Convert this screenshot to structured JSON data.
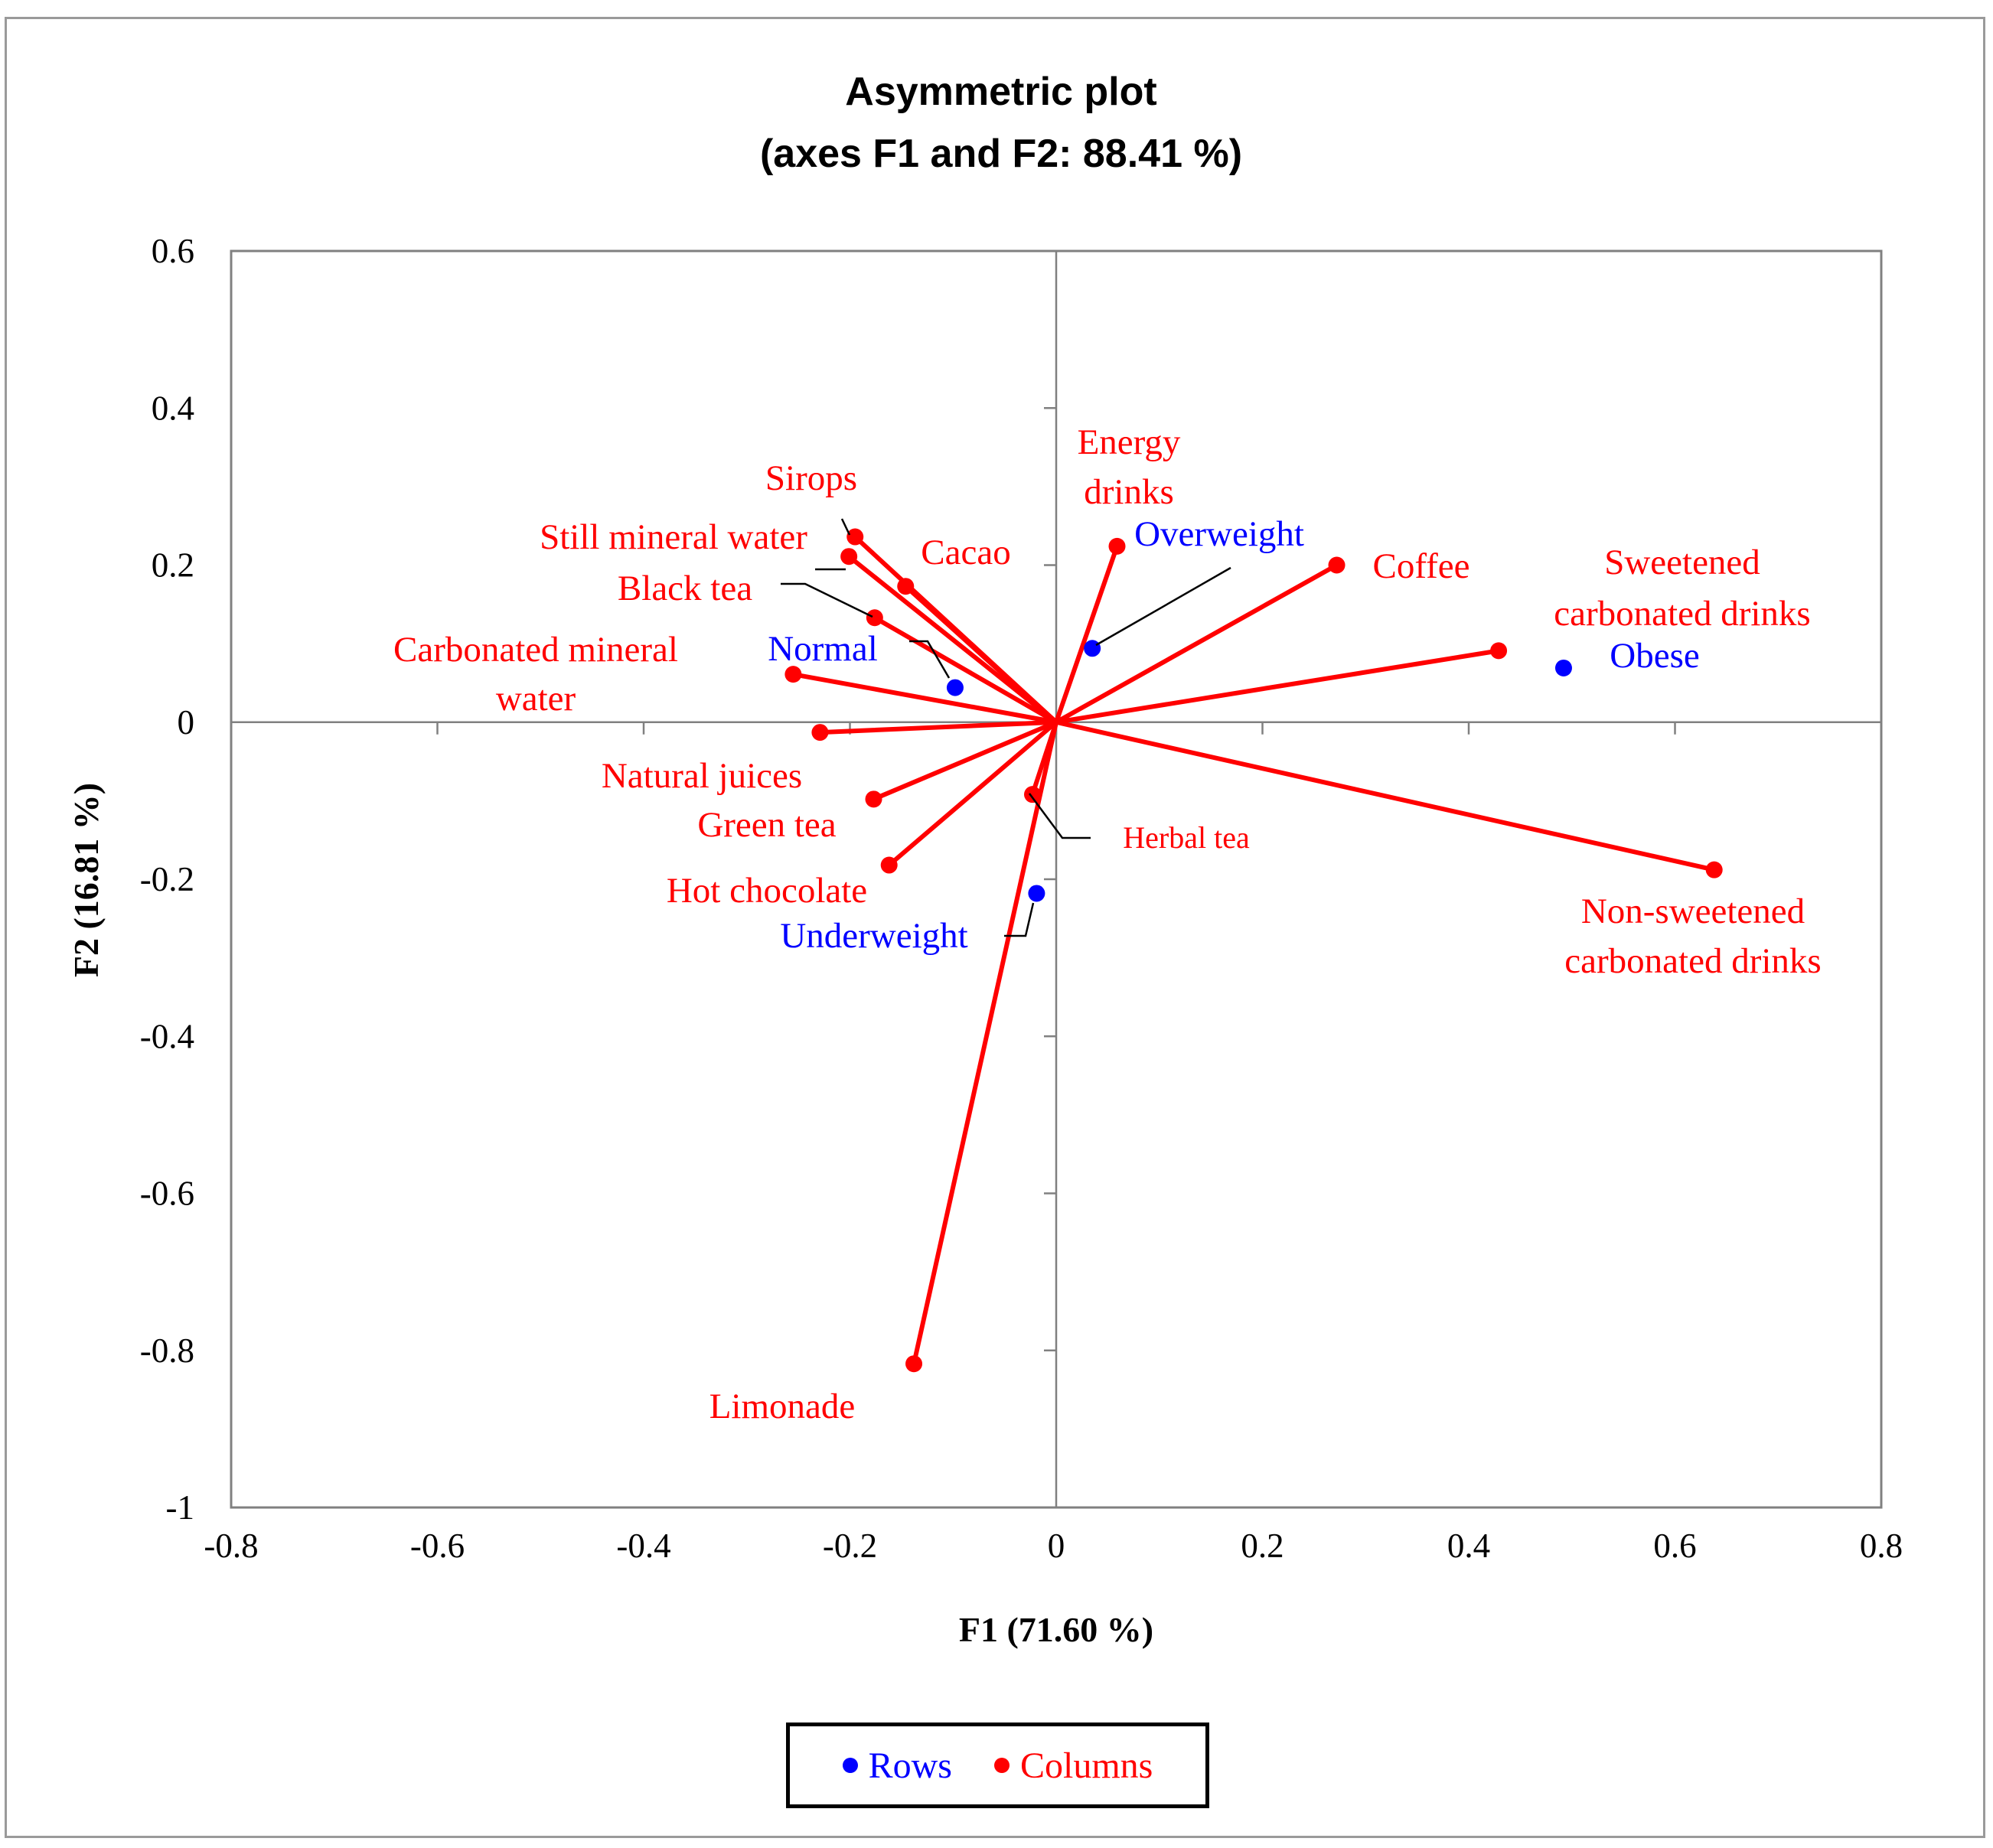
{
  "chart_data": {
    "type": "scatter",
    "subtype": "correspondence-analysis-asymmetric-biplot",
    "title": "Asymmetric plot",
    "subtitle": "(axes F1 and F2: 88.41 %)",
    "xlabel": "F1 (71.60 %)",
    "ylabel": "F2 (16.81 %)",
    "xlim": [
      -0.8,
      0.8
    ],
    "ylim": [
      -1,
      0.6
    ],
    "x_ticks": [
      "-0.8",
      "-0.6",
      "-0.4",
      "-0.2",
      "0",
      "0.2",
      "0.4",
      "0.6",
      "0.8"
    ],
    "y_ticks": [
      "0.6",
      "0.4",
      "0.2",
      "0",
      "-0.2",
      "-0.4",
      "-0.6",
      "-0.8",
      "-1"
    ],
    "colors": {
      "rows": "#0000ff",
      "columns": "#ff0000",
      "leader": "#000000",
      "axis": "#808080"
    },
    "series": [
      {
        "name": "Rows",
        "color": "#0000ff",
        "points": [
          {
            "label": "Normal",
            "x": -0.098,
            "y": 0.044
          },
          {
            "label": "Overweight",
            "x": 0.035,
            "y": 0.094
          },
          {
            "label": "Obese",
            "x": 0.492,
            "y": 0.069
          },
          {
            "label": "Underweight",
            "x": -0.019,
            "y": -0.218
          }
        ]
      },
      {
        "name": "Columns",
        "color": "#ff0000",
        "vectors": true,
        "points": [
          {
            "label": "Sirops",
            "x": -0.195,
            "y": 0.236
          },
          {
            "label": "Still mineral  water",
            "x": -0.201,
            "y": 0.211
          },
          {
            "label": "Cacao",
            "x": -0.146,
            "y": 0.173
          },
          {
            "label": "Black tea",
            "x": -0.176,
            "y": 0.133
          },
          {
            "label": "Carbonated mineral water",
            "x": -0.255,
            "y": 0.061
          },
          {
            "label": "Natural juices",
            "x": -0.229,
            "y": -0.013
          },
          {
            "label": "Green tea",
            "x": -0.177,
            "y": -0.098
          },
          {
            "label": "Hot chocolate",
            "x": -0.162,
            "y": -0.182
          },
          {
            "label": "Herbal tea",
            "x": -0.023,
            "y": -0.092
          },
          {
            "label": "Limonade",
            "x": -0.138,
            "y": -0.817
          },
          {
            "label": "Energy drinks",
            "x": 0.059,
            "y": 0.224
          },
          {
            "label": "Coffee",
            "x": 0.272,
            "y": 0.2
          },
          {
            "label": "Sweetened carbonated drinks",
            "x": 0.429,
            "y": 0.091
          },
          {
            "label": "Non-sweetened carbonated drinks",
            "x": 0.638,
            "y": -0.188
          }
        ]
      }
    ],
    "legend": {
      "position": "bottom-center",
      "entries": [
        "Rows",
        "Columns"
      ]
    }
  }
}
